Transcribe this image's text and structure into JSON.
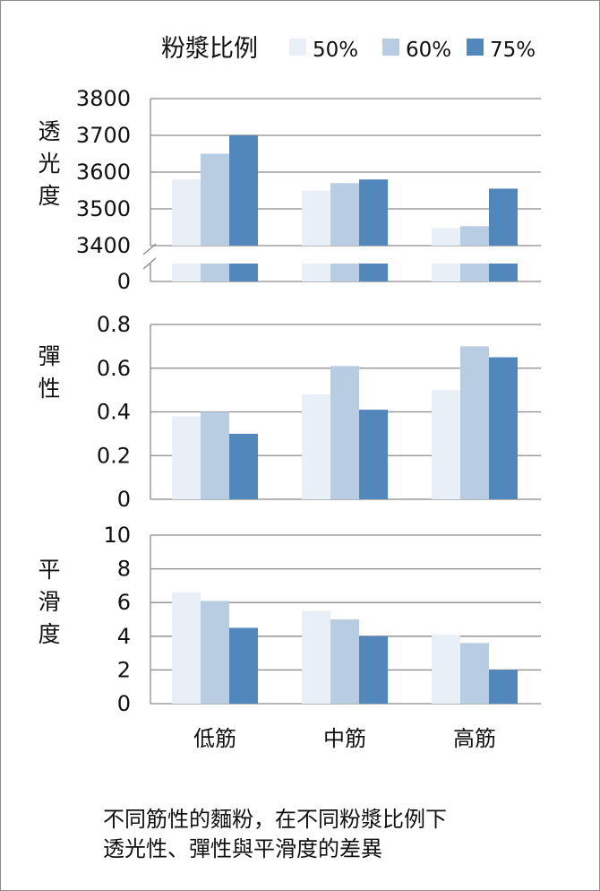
{
  "legend": {
    "title": "粉漿比例",
    "items": [
      {
        "label": "50%",
        "color": "#e9eff7"
      },
      {
        "label": "60%",
        "color": "#b9cde2"
      },
      {
        "label": "75%",
        "color": "#5187bb"
      }
    ]
  },
  "caption": {
    "line1": "不同筋性的麵粉，在不同粉漿比例下",
    "line2": "透光性、彈性與平滑度的差異"
  },
  "chart_data": [
    {
      "type": "bar",
      "ylabel": "透光度",
      "categories": [
        "低筋",
        "中筋",
        "高筋"
      ],
      "series": [
        {
          "name": "50%",
          "values": [
            3580,
            3550,
            3448
          ]
        },
        {
          "name": "60%",
          "values": [
            3650,
            3570,
            3453
          ]
        },
        {
          "name": "75%",
          "values": [
            3700,
            3580,
            3555
          ]
        }
      ],
      "ylim": [
        3400,
        3800
      ],
      "axis_break": true,
      "yticks": [
        "3800",
        "3700",
        "3600",
        "3500",
        "3400",
        "0"
      ]
    },
    {
      "type": "bar",
      "ylabel": "彈性",
      "categories": [
        "低筋",
        "中筋",
        "高筋"
      ],
      "series": [
        {
          "name": "50%",
          "values": [
            0.38,
            0.48,
            0.5
          ]
        },
        {
          "name": "60%",
          "values": [
            0.4,
            0.61,
            0.7
          ]
        },
        {
          "name": "75%",
          "values": [
            0.3,
            0.41,
            0.65
          ]
        }
      ],
      "ylim": [
        0,
        0.8
      ],
      "yticks": [
        "0.8",
        "0.6",
        "0.4",
        "0.2",
        "0"
      ]
    },
    {
      "type": "bar",
      "ylabel": "平滑度",
      "categories": [
        "低筋",
        "中筋",
        "高筋"
      ],
      "series": [
        {
          "name": "50%",
          "values": [
            6.6,
            5.5,
            4.1
          ]
        },
        {
          "name": "60%",
          "values": [
            6.1,
            5.0,
            3.6
          ]
        },
        {
          "name": "75%",
          "values": [
            4.5,
            4.0,
            2.0
          ]
        }
      ],
      "ylim": [
        0,
        10
      ],
      "yticks": [
        "10",
        "8",
        "6",
        "4",
        "2",
        "0"
      ]
    }
  ]
}
